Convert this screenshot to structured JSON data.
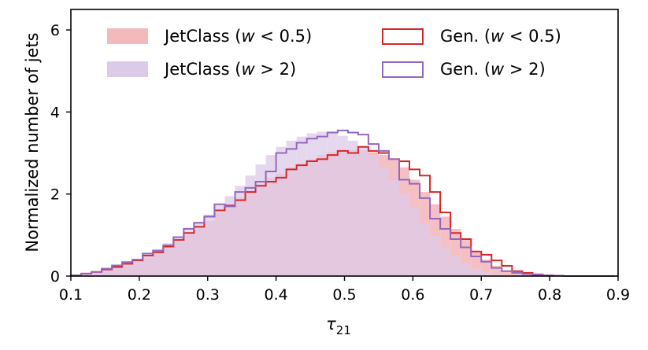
{
  "colors": {
    "jc_low_fill": "#f4b9bc",
    "jc_high_fill": "#dccbe8",
    "gen_low_line": "#d62728",
    "gen_high_line": "#9467bd",
    "axis": "#000000"
  },
  "chart_data": {
    "type": "histogram",
    "xlabel_symbol": "τ",
    "xlabel_subscript": "21",
    "ylabel": "Normalized number of jets",
    "xlim": [
      0.1,
      0.9
    ],
    "ylim": [
      0,
      6.5
    ],
    "xticks": [
      "0.1",
      "0.2",
      "0.3",
      "0.4",
      "0.5",
      "0.6",
      "0.7",
      "0.8",
      "0.9"
    ],
    "yticks": [
      "0",
      "2",
      "4",
      "6"
    ],
    "grid": false,
    "legend_position": "top",
    "bin_edges": [
      0.1,
      0.115,
      0.13,
      0.145,
      0.16,
      0.175,
      0.19,
      0.205,
      0.22,
      0.235,
      0.25,
      0.265,
      0.28,
      0.295,
      0.31,
      0.325,
      0.34,
      0.355,
      0.37,
      0.385,
      0.4,
      0.415,
      0.43,
      0.445,
      0.46,
      0.475,
      0.49,
      0.505,
      0.52,
      0.535,
      0.55,
      0.565,
      0.58,
      0.595,
      0.61,
      0.625,
      0.64,
      0.655,
      0.67,
      0.685,
      0.7,
      0.715,
      0.73,
      0.745,
      0.76,
      0.775,
      0.79,
      0.805,
      0.82,
      0.835,
      0.85,
      0.865,
      0.88,
      0.895
    ],
    "series": [
      {
        "name_text": "JetClass (",
        "name_var": "w",
        "name_rest": " < 0.5)",
        "style": "filled",
        "values": [
          0.02,
          0.05,
          0.09,
          0.15,
          0.2,
          0.28,
          0.35,
          0.45,
          0.55,
          0.7,
          0.82,
          1.0,
          1.18,
          1.35,
          1.55,
          1.72,
          1.92,
          2.08,
          2.25,
          2.4,
          2.5,
          2.65,
          2.75,
          2.85,
          2.95,
          3.02,
          3.05,
          3.08,
          3.07,
          3.02,
          2.95,
          2.82,
          2.65,
          2.35,
          2.05,
          1.75,
          1.45,
          1.15,
          0.88,
          0.6,
          0.4,
          0.25,
          0.14,
          0.08,
          0.04,
          0.02,
          0.01,
          0.0,
          0.0,
          0.0,
          0.0,
          0.0,
          0.0
        ]
      },
      {
        "name_text": "JetClass (",
        "name_var": "w",
        "name_rest": " > 2)",
        "style": "filled",
        "values": [
          0.02,
          0.06,
          0.1,
          0.17,
          0.24,
          0.32,
          0.42,
          0.52,
          0.65,
          0.8,
          0.95,
          1.12,
          1.32,
          1.5,
          1.72,
          1.95,
          2.2,
          2.45,
          2.72,
          2.95,
          3.15,
          3.3,
          3.4,
          3.48,
          3.52,
          3.5,
          3.42,
          3.3,
          3.15,
          2.95,
          2.65,
          2.35,
          2.0,
          1.65,
          1.3,
          0.98,
          0.7,
          0.48,
          0.3,
          0.18,
          0.1,
          0.05,
          0.02,
          0.01,
          0.0,
          0.0,
          0.0,
          0.0,
          0.0,
          0.0,
          0.0,
          0.0,
          0.0
        ]
      },
      {
        "name_text": "Gen. (",
        "name_var": "w",
        "name_rest": " < 0.5)",
        "style": "step",
        "values": [
          0.02,
          0.06,
          0.1,
          0.16,
          0.22,
          0.3,
          0.38,
          0.5,
          0.58,
          0.72,
          0.88,
          1.05,
          1.2,
          1.45,
          1.6,
          1.72,
          1.85,
          2.05,
          2.2,
          2.3,
          2.4,
          2.6,
          2.7,
          2.8,
          2.85,
          2.95,
          3.05,
          3.0,
          3.15,
          3.05,
          3.0,
          2.85,
          2.8,
          2.6,
          2.45,
          2.05,
          1.55,
          1.05,
          0.9,
          0.6,
          0.52,
          0.38,
          0.25,
          0.12,
          0.08,
          0.04,
          0.02,
          0.01,
          0.0,
          0.0,
          0.0,
          0.0,
          0.0
        ]
      },
      {
        "name_text": "Gen. (",
        "name_var": "w",
        "name_rest": " > 2)",
        "style": "step",
        "values": [
          0.02,
          0.06,
          0.1,
          0.18,
          0.26,
          0.34,
          0.4,
          0.55,
          0.62,
          0.75,
          0.95,
          1.15,
          1.3,
          1.45,
          1.75,
          1.7,
          2.05,
          2.15,
          2.3,
          2.55,
          3.0,
          3.1,
          3.25,
          3.35,
          3.4,
          3.5,
          3.55,
          3.5,
          3.45,
          3.22,
          3.05,
          2.85,
          2.35,
          2.25,
          1.9,
          1.4,
          1.15,
          0.9,
          0.7,
          0.48,
          0.35,
          0.2,
          0.12,
          0.08,
          0.05,
          0.03,
          0.02,
          0.01,
          0.0,
          0.0,
          0.0,
          0.0,
          0.0
        ]
      }
    ]
  }
}
